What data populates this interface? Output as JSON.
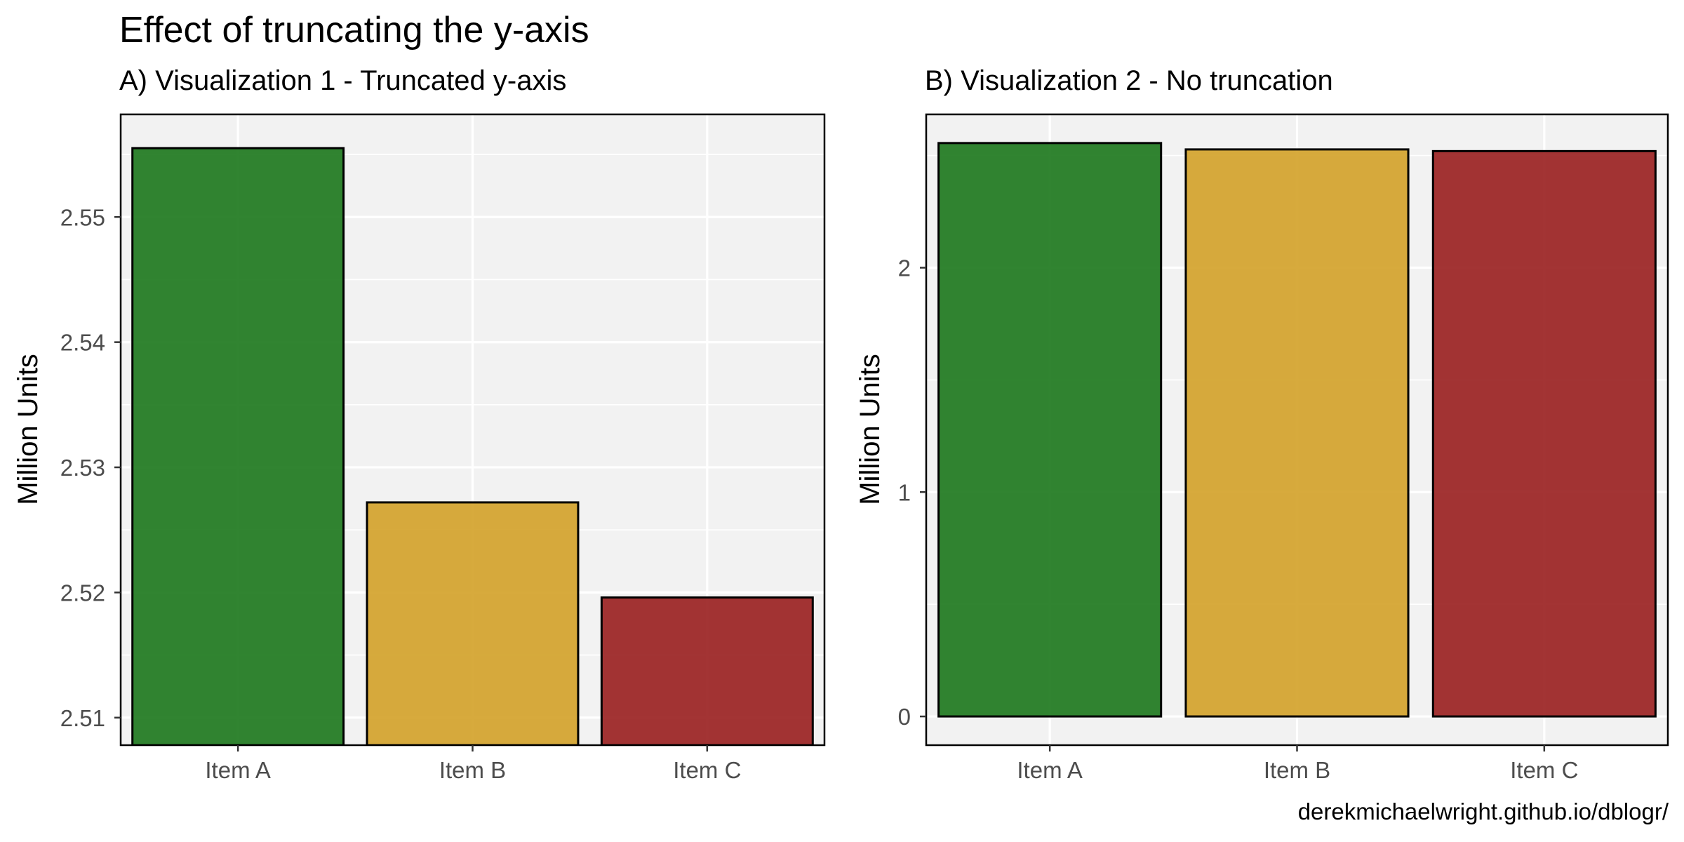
{
  "title": "Effect of truncating the y-axis",
  "caption": "derekmichaelwright.github.io/dblogr/",
  "chart_data": [
    {
      "type": "bar",
      "subtitle": "A) Visualization 1 - Truncated y-axis",
      "ylabel": "Million Units",
      "xlabel": "",
      "categories": [
        "Item A",
        "Item B",
        "Item C"
      ],
      "values": [
        2.5555,
        2.5272,
        2.5196
      ],
      "colors": [
        "#1f7a1f",
        "#d4a32c",
        "#9b2323"
      ],
      "ylim": [
        2.5078,
        2.5582
      ],
      "yticks": [
        2.51,
        2.52,
        2.53,
        2.54,
        2.55
      ],
      "ytick_labels": [
        "2.51",
        "2.52",
        "2.53",
        "2.54",
        "2.55"
      ],
      "grid": true
    },
    {
      "type": "bar",
      "subtitle": "B) Visualization 2 - No truncation",
      "ylabel": "Million Units",
      "xlabel": "",
      "categories": [
        "Item A",
        "Item B",
        "Item C"
      ],
      "values": [
        2.5555,
        2.5272,
        2.5196
      ],
      "colors": [
        "#1f7a1f",
        "#d4a32c",
        "#9b2323"
      ],
      "ylim": [
        -0.128,
        2.6833
      ],
      "yticks": [
        0,
        1,
        2
      ],
      "ytick_labels": [
        "0",
        "1",
        "2"
      ],
      "grid": true
    }
  ]
}
